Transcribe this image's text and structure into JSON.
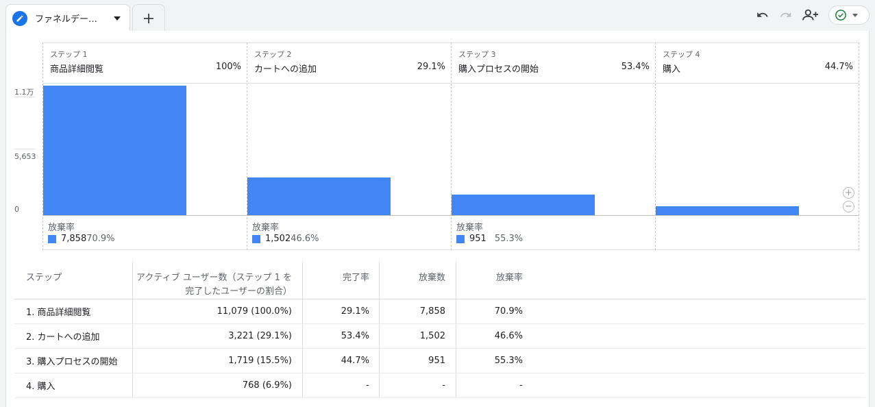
{
  "tab": {
    "title": "ファネルデー…"
  },
  "colors": {
    "accent": "#1a73e8",
    "bar": "#4285f4",
    "status_ok": "#188038"
  },
  "icons": [
    "pencil-icon",
    "caret-down-icon",
    "plus-icon",
    "undo-icon",
    "redo-icon",
    "share-user-icon",
    "check-circle-icon",
    "zoom-in-icon",
    "zoom-out-icon"
  ],
  "chart_data": {
    "type": "bar",
    "ylim": [
      0,
      11000
    ],
    "yticks": [
      "1.1万",
      "5,653",
      "0"
    ],
    "categories": [
      "商品詳細閲覧",
      "カートへの追加",
      "購入プロセスの開始",
      "購入"
    ],
    "step_labels": [
      "ステップ 1",
      "ステップ 2",
      "ステップ 3",
      "ステップ 4"
    ],
    "step_pcts": [
      "100%",
      "29.1%",
      "53.4%",
      "44.7%"
    ],
    "values": [
      11079,
      3221,
      1719,
      768
    ],
    "abandon_label": "放棄率",
    "abandon": [
      {
        "count": "7,858",
        "pct": "70.9%"
      },
      {
        "count": "1,502",
        "pct": "46.6%"
      },
      {
        "count": "951",
        "pct": "55.3%"
      }
    ]
  },
  "table": {
    "headers": [
      "ステップ",
      "アクティブ ユーザー数（ステップ 1 を完了したユーザーの割合）",
      "完了率",
      "放棄数",
      "放棄率"
    ],
    "rows": [
      [
        "1. 商品詳細閲覧",
        "11,079 (100.0%)",
        "29.1%",
        "7,858",
        "70.9%"
      ],
      [
        "2. カートへの追加",
        "3,221 (29.1%)",
        "53.4%",
        "1,502",
        "46.6%"
      ],
      [
        "3. 購入プロセスの開始",
        "1,719 (15.5%)",
        "44.7%",
        "951",
        "55.3%"
      ],
      [
        "4. 購入",
        "768 (6.9%)",
        "-",
        "-",
        "-"
      ]
    ]
  }
}
